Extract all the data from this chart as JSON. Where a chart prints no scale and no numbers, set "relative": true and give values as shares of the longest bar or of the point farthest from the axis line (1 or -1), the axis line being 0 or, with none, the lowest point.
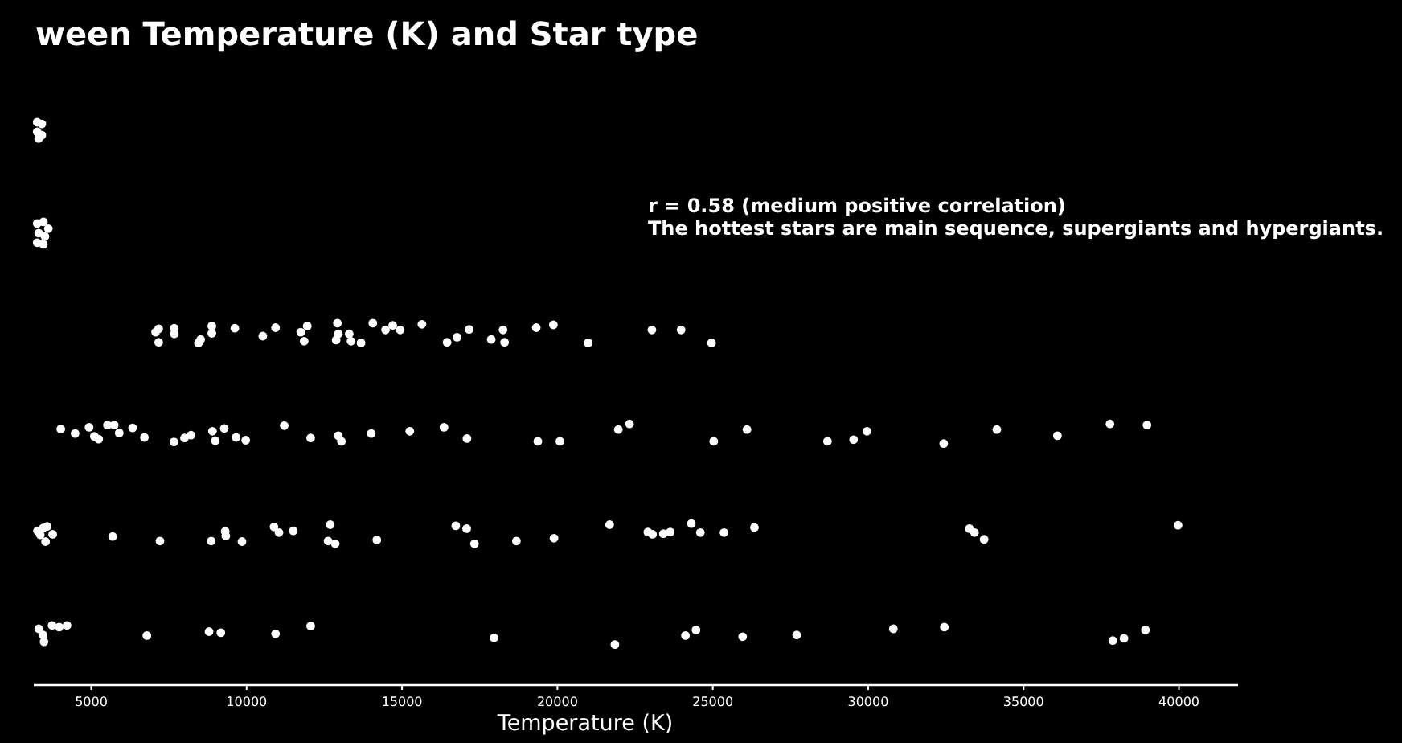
{
  "chart_data": {
    "type": "scatter",
    "title": "ween Temperature (K) and Star type",
    "xlabel": "Temperature (K)",
    "annotations": [
      "r = 0.58 (medium positive correlation)",
      "The hottest stars are main sequence, supergiants and hypergiants."
    ],
    "relative": true,
    "marker": "circle",
    "xlim": [
      3150,
      41900
    ],
    "xticks": [
      5000,
      10000,
      15000,
      20000,
      25000,
      30000,
      35000,
      40000
    ],
    "series": [
      {
        "color": "#ffffff",
        "x": [
          3260,
          3410,
          3260,
          3410,
          3310,
          3260,
          3460,
          3620,
          3310,
          3510,
          3260,
          3460,
          7070,
          7170,
          7170,
          7670,
          7670,
          8450,
          8520,
          8880,
          8880,
          9620,
          10520,
          10930,
          11740,
          11850,
          11950,
          12920,
          12880,
          12950,
          13300,
          13360,
          13680,
          14060,
          14470,
          14700,
          14940,
          15640,
          16450,
          16770,
          17160,
          17870,
          18250,
          18300,
          19320,
          19870,
          20990,
          23040,
          23980,
          24960,
          4020,
          4480,
          4930,
          5100,
          5240,
          5520,
          5740,
          5900,
          6330,
          6710,
          7660,
          8000,
          8210,
          8900,
          8990,
          9280,
          9660,
          9970,
          11210,
          12060,
          12950,
          13050,
          14010,
          15250,
          16350,
          17090,
          19370,
          20080,
          21960,
          22320,
          25030,
          26100,
          28690,
          29530,
          29960,
          32430,
          34140,
          36090,
          37780,
          38970,
          3270,
          3450,
          3580,
          3360,
          3530,
          3760,
          5690,
          7210,
          8860,
          9310,
          9330,
          9850,
          10880,
          11040,
          11500,
          12690,
          12620,
          12850,
          14190,
          16730,
          17080,
          17330,
          18680,
          19890,
          21680,
          22910,
          23060,
          23410,
          23630,
          24310,
          24600,
          25360,
          26340,
          33260,
          33420,
          33730,
          39970,
          3310,
          3450,
          3480,
          3740,
          3970,
          4220,
          6790,
          8790,
          9170,
          10930,
          12060,
          17960,
          21850,
          24120,
          24460,
          25960,
          27700,
          30810,
          32450,
          37870,
          38230,
          38920
        ],
        "values": [
          1,
          0.997,
          0.983,
          0.977,
          0.971,
          0.82,
          0.823,
          0.811,
          0.803,
          0.797,
          0.786,
          0.783,
          0.627,
          0.633,
          0.609,
          0.634,
          0.624,
          0.608,
          0.614,
          0.638,
          0.625,
          0.634,
          0.62,
          0.635,
          0.627,
          0.611,
          0.638,
          0.643,
          0.613,
          0.624,
          0.624,
          0.611,
          0.608,
          0.643,
          0.631,
          0.639,
          0.631,
          0.641,
          0.609,
          0.618,
          0.632,
          0.614,
          0.631,
          0.609,
          0.635,
          0.64,
          0.608,
          0.631,
          0.631,
          0.608,
          0.455,
          0.447,
          0.458,
          0.442,
          0.437,
          0.462,
          0.462,
          0.448,
          0.457,
          0.44,
          0.432,
          0.439,
          0.444,
          0.451,
          0.434,
          0.456,
          0.44,
          0.435,
          0.461,
          0.439,
          0.443,
          0.433,
          0.447,
          0.451,
          0.458,
          0.438,
          0.433,
          0.433,
          0.454,
          0.464,
          0.433,
          0.454,
          0.433,
          0.436,
          0.451,
          0.429,
          0.454,
          0.443,
          0.464,
          0.462,
          0.274,
          0.279,
          0.282,
          0.267,
          0.255,
          0.268,
          0.264,
          0.256,
          0.256,
          0.273,
          0.265,
          0.255,
          0.281,
          0.271,
          0.274,
          0.285,
          0.256,
          0.251,
          0.258,
          0.283,
          0.278,
          0.251,
          0.256,
          0.261,
          0.285,
          0.272,
          0.268,
          0.269,
          0.272,
          0.287,
          0.271,
          0.271,
          0.28,
          0.278,
          0.271,
          0.259,
          0.284,
          0.1,
          0.089,
          0.077,
          0.106,
          0.103,
          0.106,
          0.088,
          0.095,
          0.093,
          0.091,
          0.105,
          0.084,
          0.072,
          0.088,
          0.098,
          0.086,
          0.089,
          0.1,
          0.103,
          0.079,
          0.083,
          0.098
        ]
      }
    ]
  }
}
